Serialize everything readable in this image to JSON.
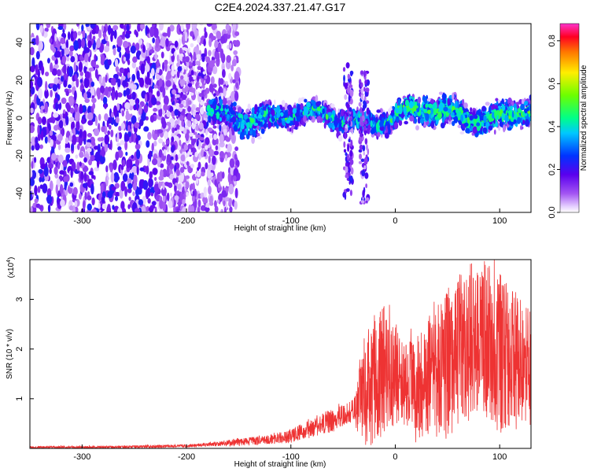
{
  "title": "C2E4.2024.337.21.47.G17",
  "chart_data": [
    {
      "type": "heatmap",
      "xlabel": "Height of straight line (km)",
      "ylabel": "Frequency (Hz)",
      "xlim": [
        -350,
        130
      ],
      "ylim": [
        -50,
        50
      ],
      "x_ticks": [
        "-300",
        "-200",
        "-100",
        "0",
        "100"
      ],
      "y_ticks": [
        "-40",
        "-20",
        "0",
        "20",
        "40"
      ],
      "colorbar": {
        "label": "Normalized spectral amplitude",
        "range": [
          0,
          0.88
        ],
        "ticks": [
          "0.0",
          "0.2",
          "0.4",
          "0.6",
          "0.8"
        ]
      },
      "bands": [
        {
          "x_range": [
            -350,
            -180
          ],
          "freq_center": 0,
          "freq_spread": 50,
          "amplitude": 0.08
        },
        {
          "x_range": [
            -180,
            -120
          ],
          "freq_center": 2,
          "freq_spread": 8,
          "amplitude": 0.3
        },
        {
          "x_range": [
            -120,
            0
          ],
          "freq_center": 0,
          "freq_spread": 6,
          "amplitude": 0.3
        },
        {
          "x_range": [
            0,
            130
          ],
          "freq_center": 2,
          "freq_spread": 7,
          "amplitude": 0.35
        }
      ],
      "spikes": [
        {
          "x": -45,
          "freq_range": [
            -42,
            30
          ]
        },
        {
          "x": -30,
          "freq_range": [
            -45,
            25
          ]
        }
      ]
    },
    {
      "type": "line",
      "xlabel": "Height of straight line (km)",
      "ylabel": "SNR (10 * v/v)",
      "y_multiplier": "(x10",
      "y_multiplier_exp": "4",
      "xlim": [
        -350,
        130
      ],
      "ylim": [
        0,
        3.8
      ],
      "x_ticks": [
        "-300",
        "-200",
        "-100",
        "0",
        "100"
      ],
      "y_ticks": [
        "1",
        "2",
        "3"
      ],
      "color": "#ee3333",
      "series": [
        {
          "x": [
            -350,
            -300,
            -250,
            -200,
            -180,
            -150,
            -120,
            -100,
            -80,
            -60,
            -40,
            -30,
            -20,
            -10,
            0,
            10,
            20,
            30,
            40,
            50,
            60,
            70,
            80,
            90,
            100,
            110,
            120,
            130
          ],
          "y": [
            0.02,
            0.02,
            0.03,
            0.05,
            0.08,
            0.12,
            0.18,
            0.25,
            0.4,
            0.55,
            0.75,
            1.1,
            1.4,
            1.6,
            1.5,
            1.3,
            1.2,
            1.3,
            1.5,
            1.7,
            1.9,
            2.0,
            2.2,
            2.1,
            1.9,
            1.8,
            1.7,
            1.6
          ],
          "peak_amplitude": [
            0.05,
            0.05,
            0.06,
            0.08,
            0.12,
            0.2,
            0.28,
            0.4,
            0.6,
            0.8,
            1.0,
            2.2,
            2.8,
            3.0,
            2.6,
            2.2,
            2.4,
            2.6,
            2.9,
            3.3,
            3.5,
            3.6,
            3.7,
            3.8,
            3.6,
            3.3,
            3.1,
            2.8
          ]
        }
      ]
    }
  ]
}
